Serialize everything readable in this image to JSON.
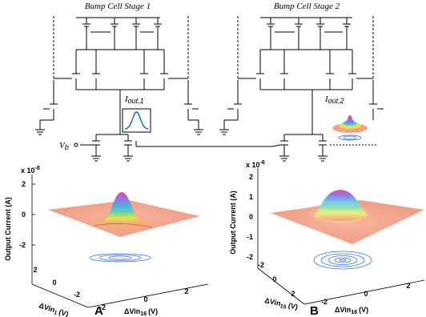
{
  "circuit": {
    "stage1_title": "Bump Cell Stage 1",
    "stage2_title": "Bump Cell Stage 2",
    "iout1_base": "I",
    "iout1_sub": "out,1",
    "iout2_base": "I",
    "iout2_sub": "out,2",
    "vb_base": "V",
    "vb_sub": "b"
  },
  "plots": [
    {
      "panel_label": "A",
      "exponent": "x 10",
      "exponent_power": "-8",
      "ylabel": "Output Current (A)",
      "z_ticks": [
        "2",
        "0",
        "-2"
      ],
      "left_ticks": [
        "-2",
        "0",
        "2"
      ],
      "front_ticks": [
        "-2",
        "0",
        "2"
      ],
      "xlabel_left": "ΔVin",
      "xlabel_left_sub": "1",
      "xlabel_left_unit": "(V)",
      "xlabel_front": "ΔVin",
      "xlabel_front_sub": "16",
      "xlabel_front_unit": "(V)"
    },
    {
      "panel_label": "B",
      "exponent": "x 10",
      "exponent_power": "-6",
      "ylabel": "Output Current (A)",
      "z_ticks": [
        "2",
        "1",
        "0",
        "-1",
        "-2"
      ],
      "left_ticks": [
        "-2",
        "0",
        "2"
      ],
      "front_ticks": [
        "-2",
        "0",
        "2"
      ],
      "xlabel_left": "ΔVin",
      "xlabel_left_sub": "15",
      "xlabel_left_unit": "(V)",
      "xlabel_front": "ΔVin",
      "xlabel_front_sub": "16",
      "xlabel_front_unit": "(V)"
    }
  ],
  "colors": {
    "surface_base": "#f4a08a",
    "contour": "#3a6fd0",
    "wire": "#000000"
  }
}
